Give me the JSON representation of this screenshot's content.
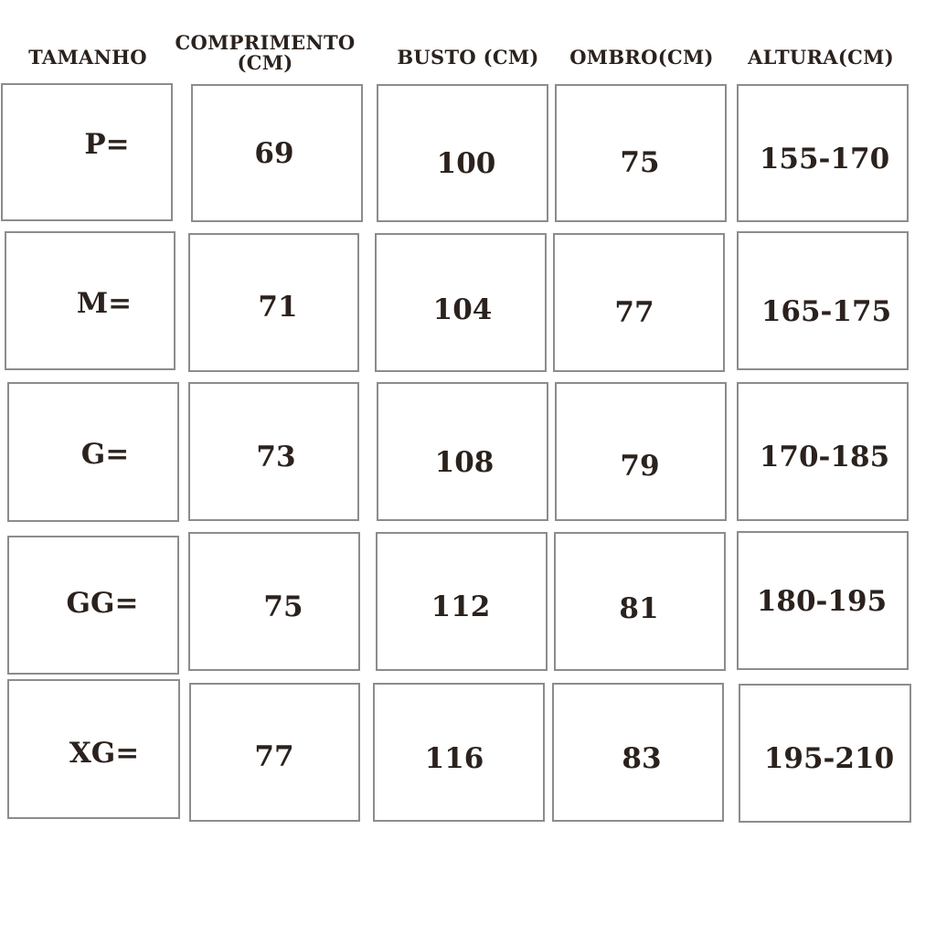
{
  "headers": [
    "TAMANHO",
    "COMPRIMENTO (CM)",
    "BUSTO (CM)",
    "OMBRO(CM)",
    "ALTURA(CM)"
  ],
  "rows": [
    [
      "P=",
      "69",
      "100",
      "75",
      "155-170"
    ],
    [
      "M=",
      "71",
      "104",
      "77",
      "165-175"
    ],
    [
      "G=",
      "73",
      "108",
      "79",
      "170-185"
    ],
    [
      "GG=",
      "75",
      "112",
      "81",
      "180-195"
    ],
    [
      "XG=",
      "77",
      "116",
      "83",
      "195-210"
    ]
  ],
  "colors": {
    "text": "#2b221d",
    "border": "#8c8c8c",
    "background": "#ffffff"
  }
}
